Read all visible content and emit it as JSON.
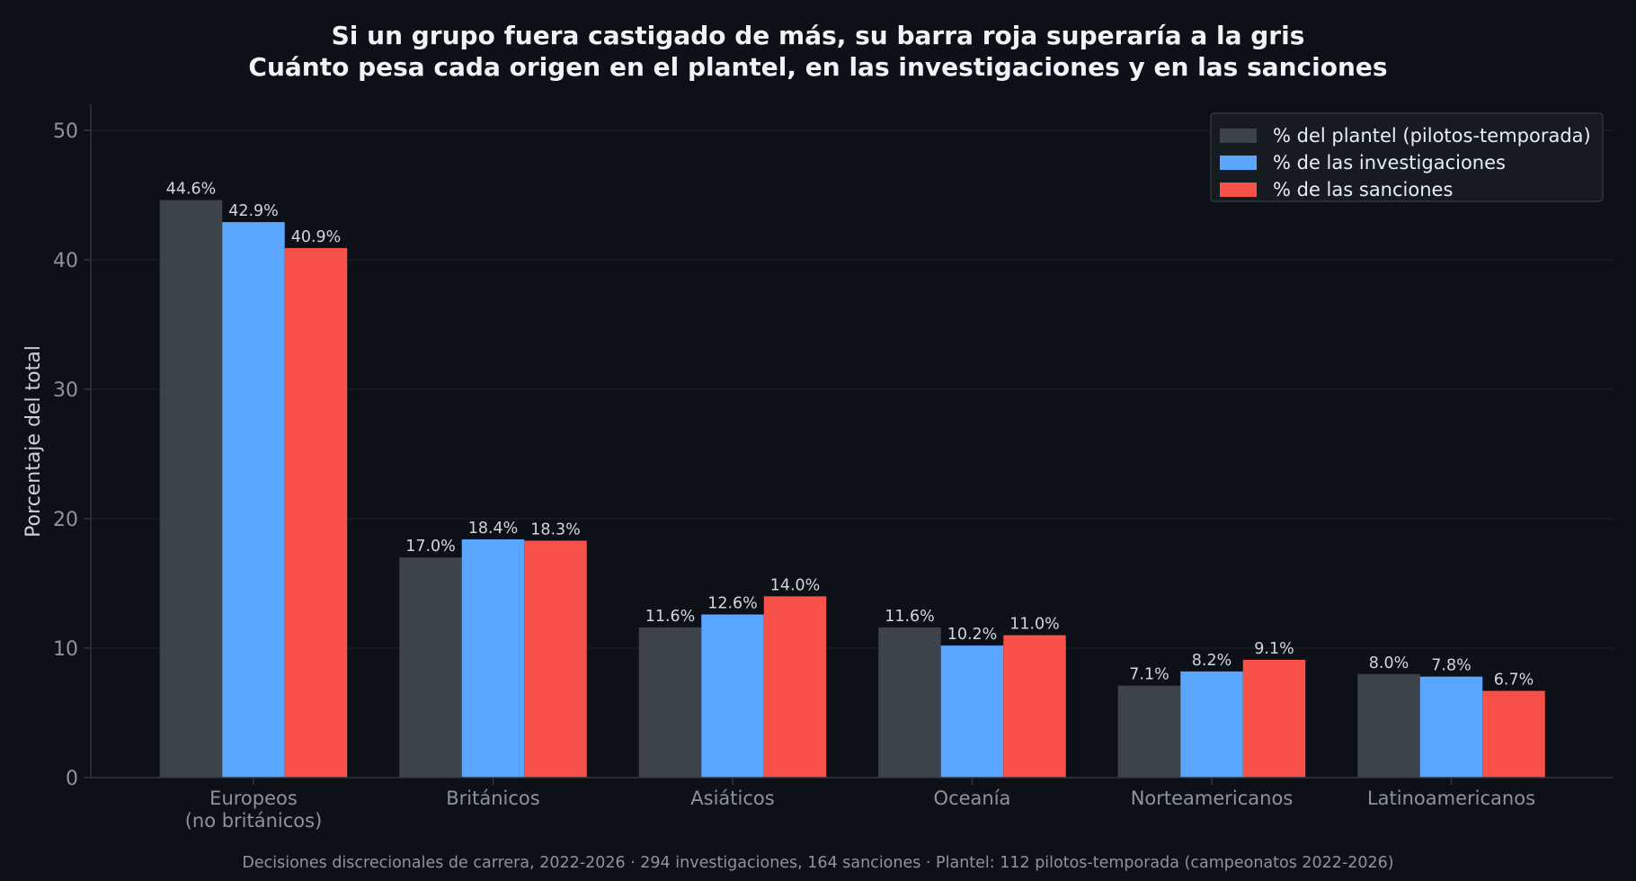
{
  "chart_data": {
    "type": "bar",
    "title": "Si un grupo fuera castigado de más, su barra roja superaría a la gris",
    "subtitle": "Cuánto pesa cada origen en el plantel, en las investigaciones y en las sanciones",
    "ylabel": "Porcentaje del total",
    "xlabel": "",
    "ylim": [
      0,
      52
    ],
    "yticks": [
      "0",
      "10",
      "20",
      "30",
      "40",
      "50"
    ],
    "grid": "horizontal",
    "legend_position": "top-right",
    "categories": [
      [
        "Europeos",
        "(no británicos)"
      ],
      [
        "Británicos"
      ],
      [
        "Asiáticos"
      ],
      [
        "Oceanía"
      ],
      [
        "Norteamericanos"
      ],
      [
        "Latinoamericanos"
      ]
    ],
    "series": [
      {
        "name": "% del plantel (pilotos-temporada)",
        "color": "#3d434b",
        "values": [
          44.6,
          17.0,
          11.6,
          11.6,
          7.1,
          8.0
        ],
        "labels": [
          "44.6%",
          "17.0%",
          "11.6%",
          "11.6%",
          "7.1%",
          "8.0%"
        ]
      },
      {
        "name": "% de las investigaciones",
        "color": "#58a6ff",
        "values": [
          42.9,
          18.4,
          12.6,
          10.2,
          8.2,
          7.8
        ],
        "labels": [
          "42.9%",
          "18.4%",
          "12.6%",
          "10.2%",
          "8.2%",
          "7.8%"
        ]
      },
      {
        "name": "% de las sanciones",
        "color": "#f85149",
        "values": [
          40.9,
          18.3,
          14.0,
          11.0,
          9.1,
          6.7
        ],
        "labels": [
          "40.9%",
          "18.3%",
          "14.0%",
          "11.0%",
          "9.1%",
          "6.7%"
        ]
      }
    ],
    "caption": "Decisiones discrecionales de carrera, 2022-2026 · 294 investigaciones, 164 sanciones · Plantel: 112 pilotos-temporada (campeonatos 2022-2026)"
  }
}
